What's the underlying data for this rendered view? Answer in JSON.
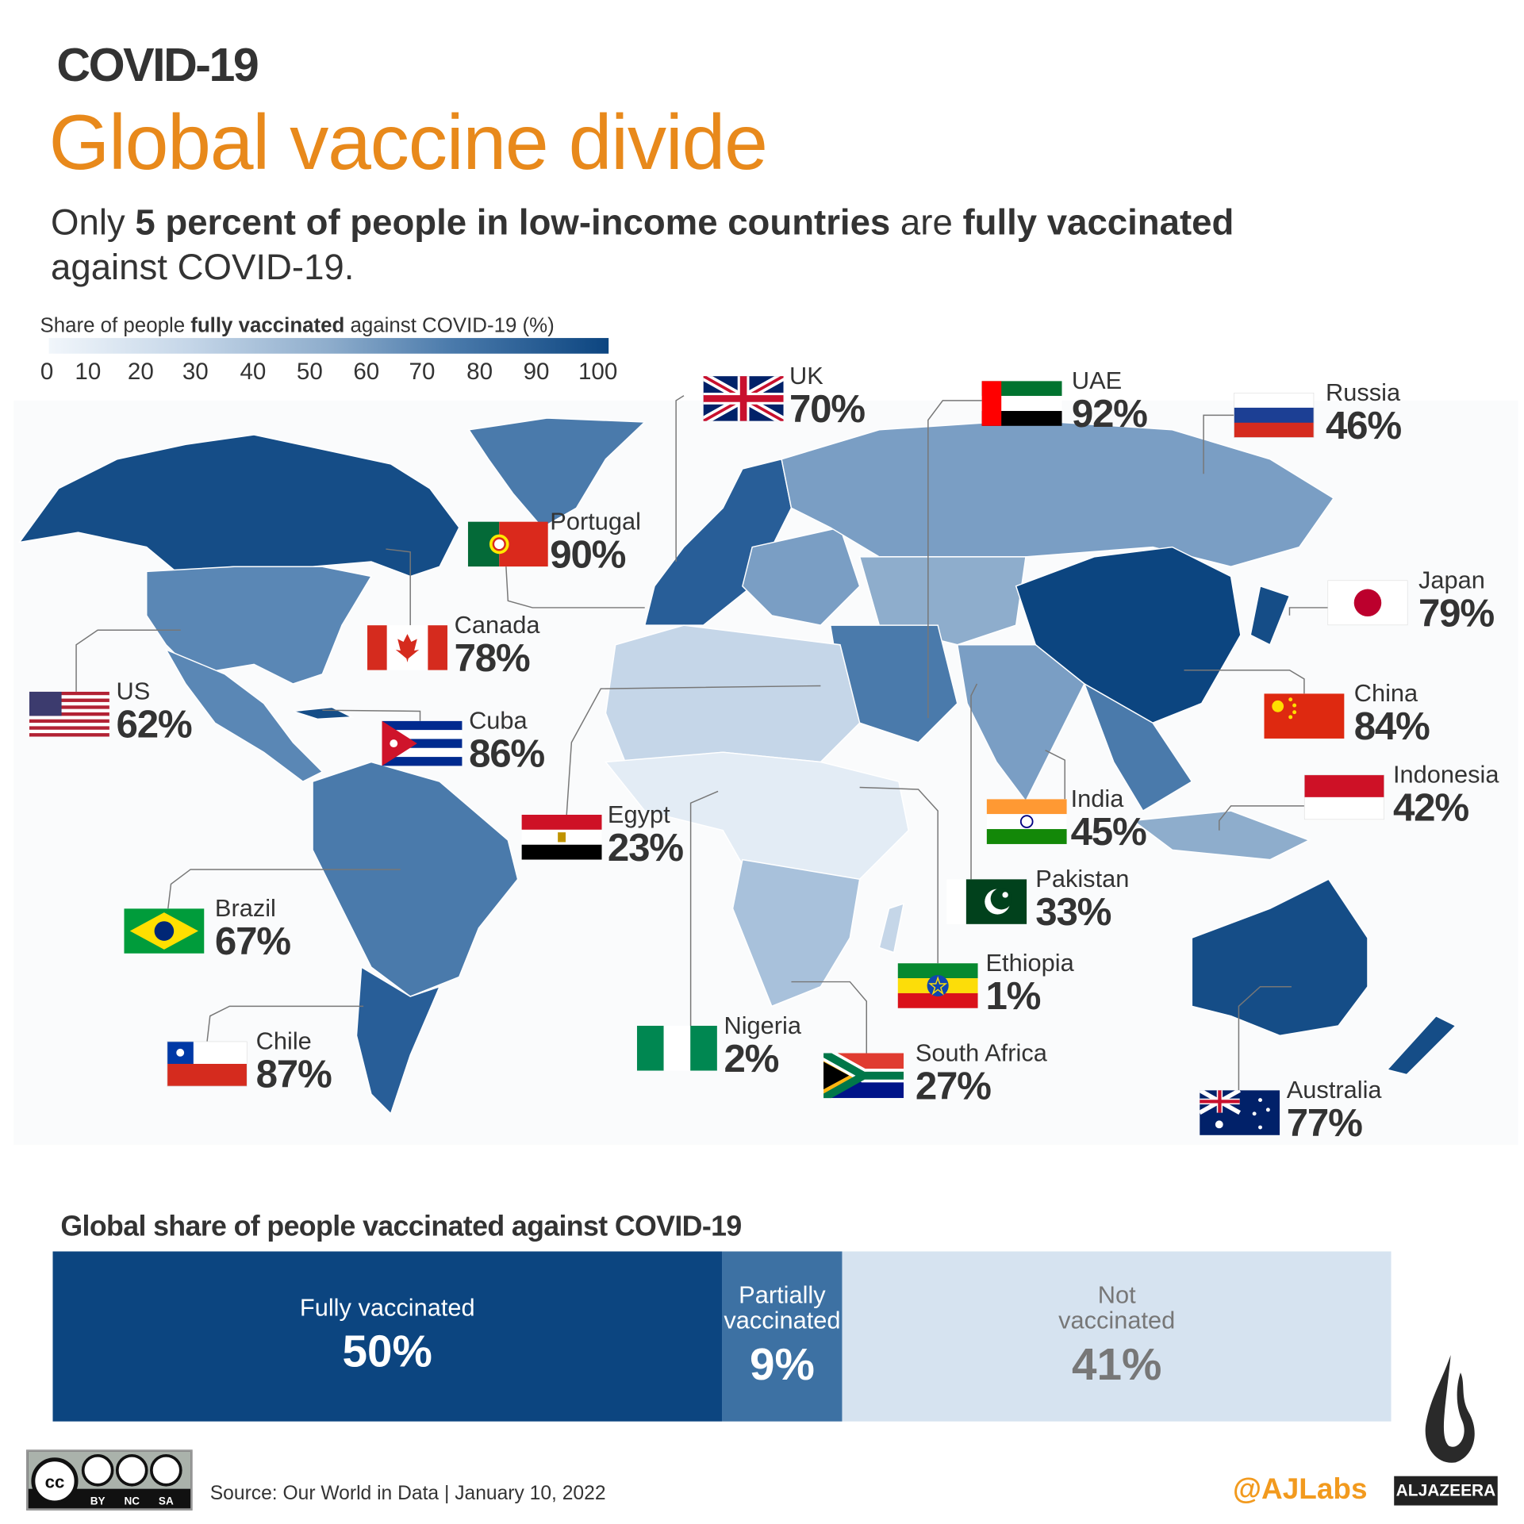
{
  "header": {
    "kicker": "COVID-19",
    "title": "Global vaccine divide",
    "subtitle_parts": [
      "Only ",
      "5 percent of people in low-income countries",
      " are ",
      "fully vaccinated",
      " against COVID-19."
    ]
  },
  "chart_data": [
    {
      "type": "choropleth-map",
      "legend": {
        "title_parts": [
          "Share of people ",
          "fully vaccinated",
          " against COVID-19 (%)"
        ],
        "ticks": [
          "0",
          "10",
          "20",
          "30",
          "40",
          "50",
          "60",
          "70",
          "80",
          "90",
          "100"
        ],
        "range": [
          0,
          100
        ],
        "color_low": "#f1f6fb",
        "color_high": "#0c4580"
      },
      "countries": [
        {
          "name": "UK",
          "value": 70,
          "label": "70%",
          "flag": {
            "kind": "uk"
          }
        },
        {
          "name": "UAE",
          "value": 92,
          "label": "92%",
          "flag": {
            "kind": "uae"
          }
        },
        {
          "name": "Russia",
          "value": 46,
          "label": "46%",
          "flag": {
            "kind": "h",
            "colors": [
              "#ffffff",
              "#1c3f94",
              "#d52b1e"
            ]
          }
        },
        {
          "name": "Portugal",
          "value": 90,
          "label": "90%",
          "flag": {
            "kind": "portugal"
          }
        },
        {
          "name": "Japan",
          "value": 79,
          "label": "79%",
          "flag": {
            "kind": "japan"
          }
        },
        {
          "name": "Canada",
          "value": 78,
          "label": "78%",
          "flag": {
            "kind": "canada"
          }
        },
        {
          "name": "US",
          "value": 62,
          "label": "62%",
          "flag": {
            "kind": "us"
          }
        },
        {
          "name": "Cuba",
          "value": 86,
          "label": "86%",
          "flag": {
            "kind": "cuba"
          }
        },
        {
          "name": "China",
          "value": 84,
          "label": "84%",
          "flag": {
            "kind": "china"
          }
        },
        {
          "name": "Indonesia",
          "value": 42,
          "label": "42%",
          "flag": {
            "kind": "h",
            "colors": [
              "#ce1126",
              "#ffffff"
            ]
          }
        },
        {
          "name": "India",
          "value": 45,
          "label": "45%",
          "flag": {
            "kind": "india"
          }
        },
        {
          "name": "Egypt",
          "value": 23,
          "label": "23%",
          "flag": {
            "kind": "egypt"
          }
        },
        {
          "name": "Pakistan",
          "value": 33,
          "label": "33%",
          "flag": {
            "kind": "pakistan"
          }
        },
        {
          "name": "Brazil",
          "value": 67,
          "label": "67%",
          "flag": {
            "kind": "brazil"
          }
        },
        {
          "name": "Ethiopia",
          "value": 1,
          "label": "1%",
          "flag": {
            "kind": "ethiopia"
          }
        },
        {
          "name": "Nigeria",
          "value": 2,
          "label": "2%",
          "flag": {
            "kind": "v",
            "colors": [
              "#008751",
              "#ffffff",
              "#008751"
            ]
          }
        },
        {
          "name": "Chile",
          "value": 87,
          "label": "87%",
          "flag": {
            "kind": "chile"
          }
        },
        {
          "name": "South Africa",
          "value": 27,
          "label": "27%",
          "flag": {
            "kind": "southafrica"
          }
        },
        {
          "name": "Australia",
          "value": 77,
          "label": "77%",
          "flag": {
            "kind": "australia"
          }
        }
      ]
    },
    {
      "type": "stacked-bar",
      "title": "Global share of people vaccinated against COVID-19",
      "series": [
        {
          "name": "Fully vaccinated",
          "value": 50,
          "label": "50%",
          "color": "#0c4580"
        },
        {
          "name": "Partially vaccinated",
          "value": 9,
          "label": "9%",
          "color": "#3d71a3"
        },
        {
          "name": "Not vaccinated",
          "value": 41,
          "label": "41%",
          "color": "#d6e3f0"
        }
      ]
    }
  ],
  "footer": {
    "source": "Source: Our World in Data | January 10, 2022",
    "handle": "@AJLabs",
    "brand": "ALJAZEERA",
    "license": [
      "BY",
      "NC",
      "SA"
    ]
  }
}
